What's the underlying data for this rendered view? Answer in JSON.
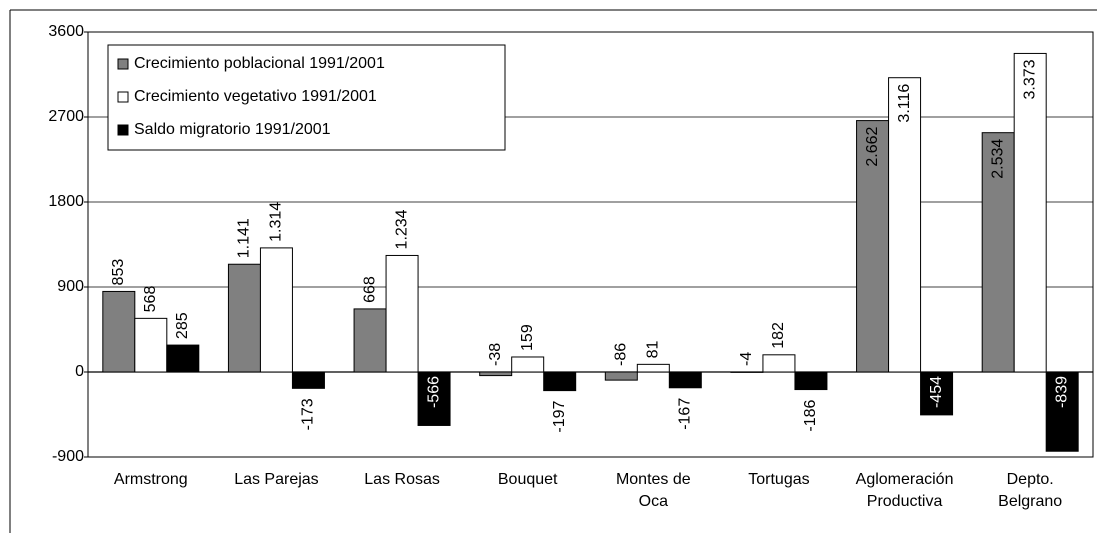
{
  "chart_data": {
    "type": "bar",
    "categories": [
      "Armstrong",
      "Las Parejas",
      "Las Rosas",
      "Bouquet",
      "Montes de Oca",
      "Tortugas",
      "Aglomeración Productiva",
      "Depto. Belgrano"
    ],
    "series": [
      {
        "name": "Crecimiento poblacional 1991/2001",
        "color": "#808080",
        "values": [
          853,
          1141,
          668,
          -38,
          -86,
          -4,
          2662,
          2534
        ],
        "value_labels": [
          "853",
          "1.141",
          "668",
          "-38",
          "-86",
          "-4",
          "2.662",
          "2.534"
        ]
      },
      {
        "name": "Crecimiento vegetativo 1991/2001",
        "color": "#ffffff",
        "values": [
          568,
          1314,
          1234,
          159,
          81,
          182,
          3116,
          3373
        ],
        "value_labels": [
          "568",
          "1.314",
          "1.234",
          "159",
          "81",
          "182",
          "3.116",
          "3.373"
        ]
      },
      {
        "name": "Saldo migratorio 1991/2001",
        "color": "#000000",
        "values": [
          285,
          -173,
          -566,
          -197,
          -167,
          -186,
          -454,
          -839
        ]
      }
    ],
    "ylim": [
      -900,
      3600
    ],
    "yticks": [
      3600,
      2700,
      1800,
      900,
      0,
      -900
    ],
    "grid": true,
    "legend": "top-left"
  }
}
